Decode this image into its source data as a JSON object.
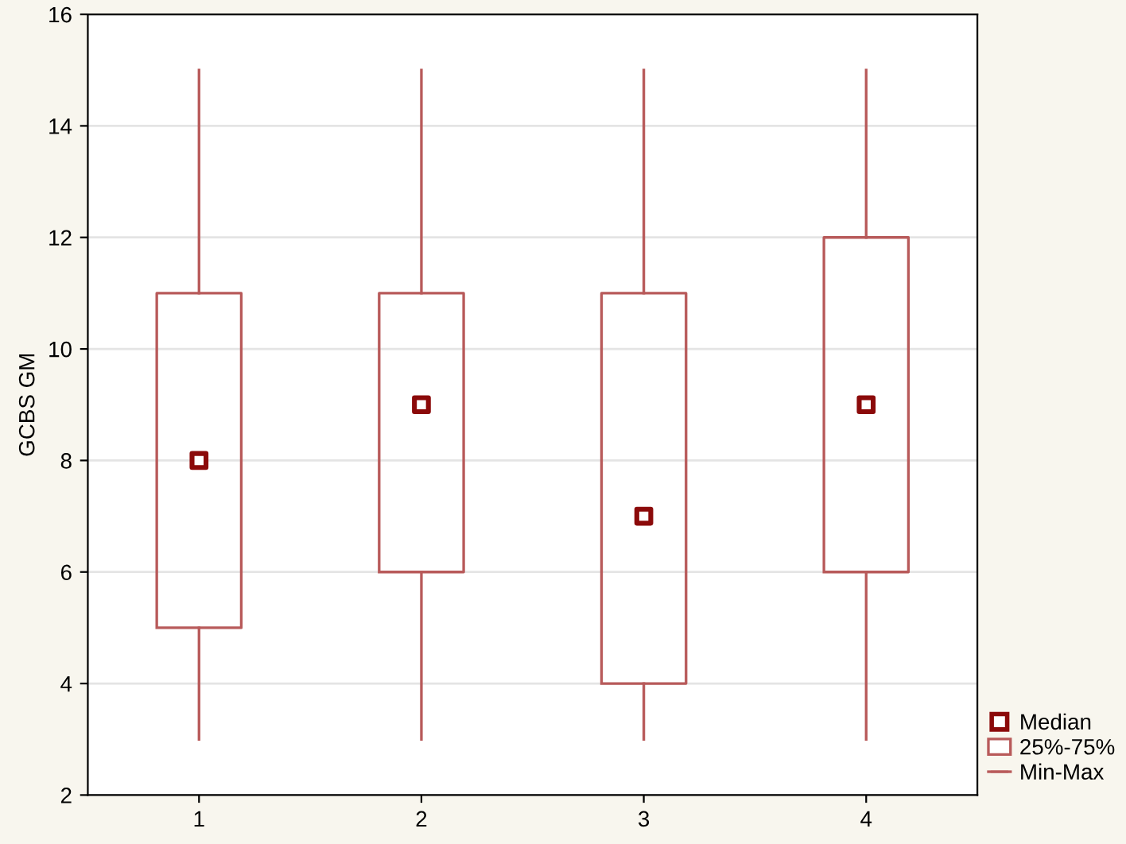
{
  "chart_data": {
    "type": "box",
    "ylabel": "GCBS GM",
    "categories": [
      "1",
      "2",
      "3",
      "4"
    ],
    "ylim": [
      2,
      16
    ],
    "yticks": [
      2,
      4,
      6,
      8,
      10,
      12,
      14,
      16
    ],
    "grid": "y",
    "legend": "bottom right",
    "marker": "square",
    "series": [
      {
        "name": "25%-75%",
        "color": "#b85a5a",
        "boxes": [
          {
            "low": 3,
            "q1": 5,
            "median": 8,
            "q3": 11,
            "high": 15
          },
          {
            "low": 3,
            "q1": 6,
            "median": 9,
            "q3": 11,
            "high": 15
          },
          {
            "low": 3,
            "q1": 4,
            "median": 7,
            "q3": 11,
            "high": 15
          },
          {
            "low": 3,
            "q1": 6,
            "median": 9,
            "q3": 12,
            "high": 15
          }
        ]
      }
    ],
    "annotations": [
      "Median",
      "Min-Max"
    ]
  }
}
